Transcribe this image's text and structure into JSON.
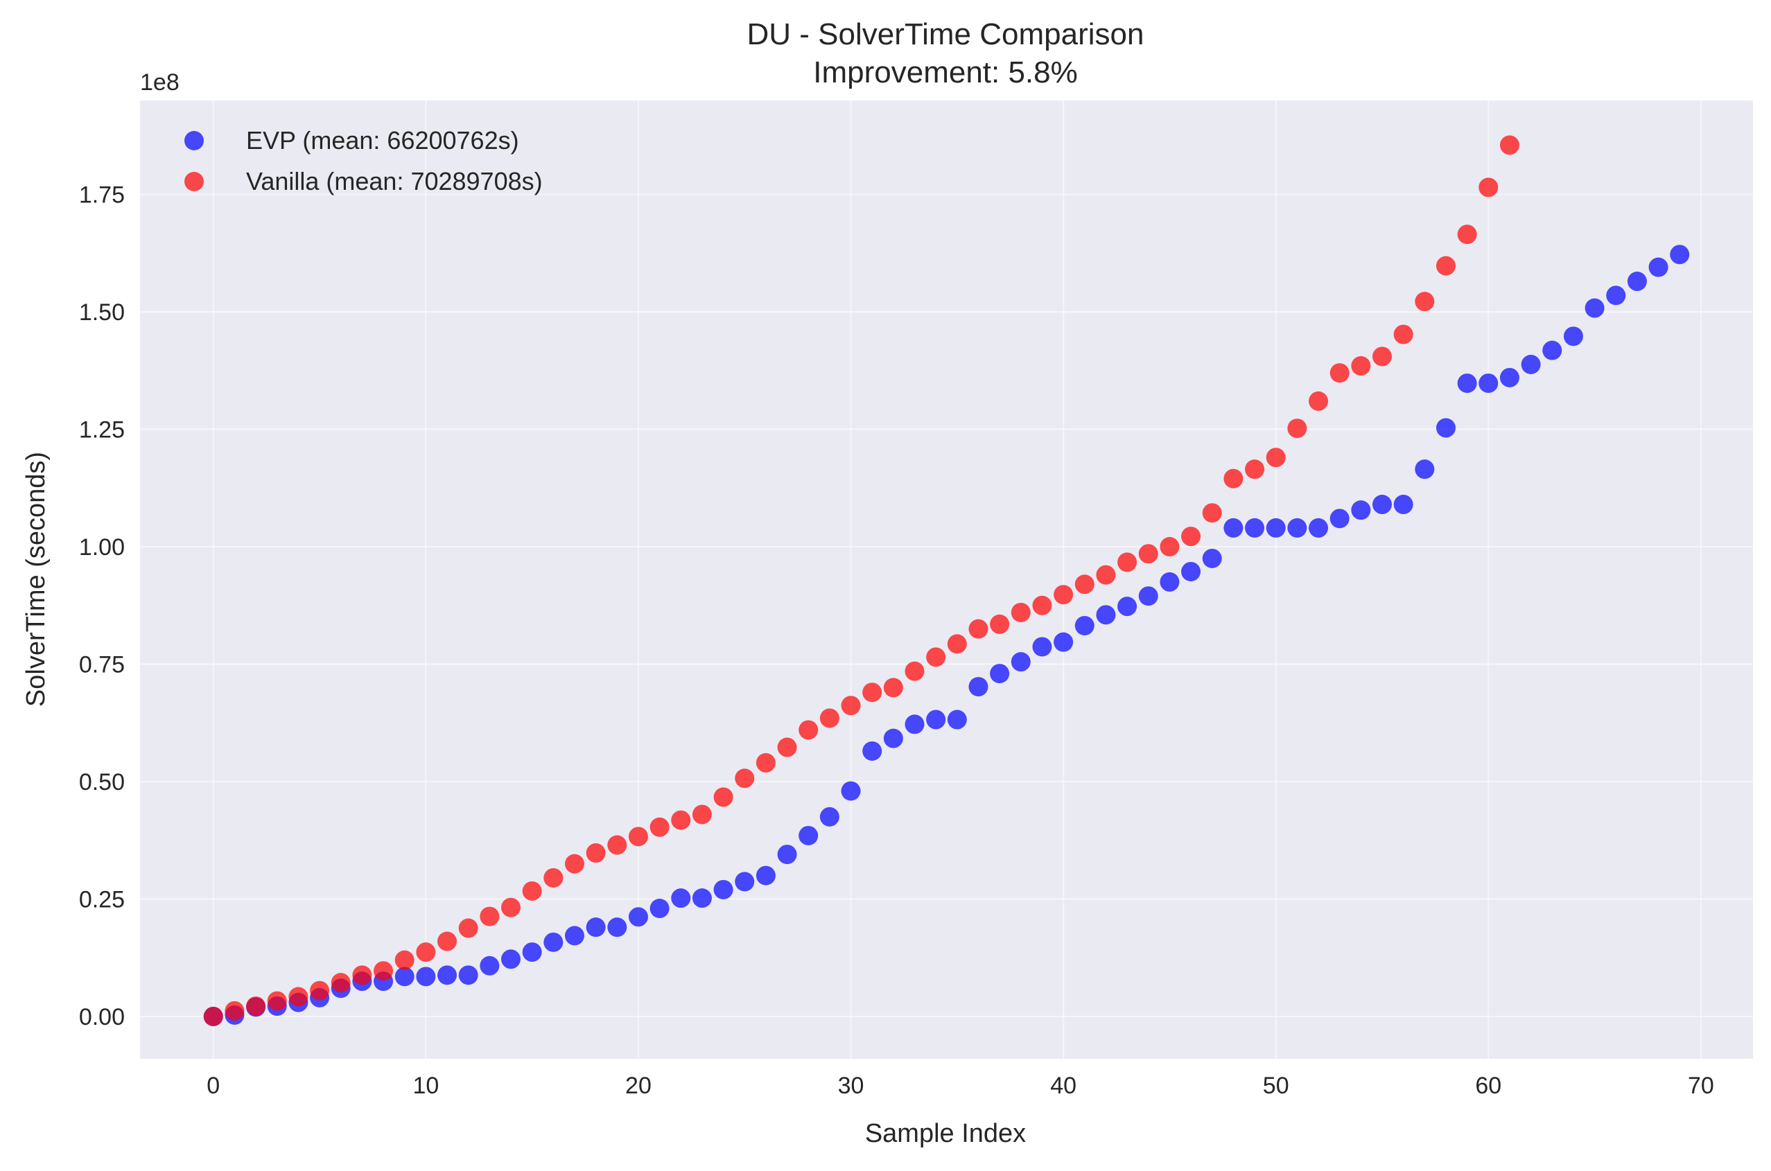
{
  "chart_data": {
    "type": "scatter",
    "title": "DU - SolverTime Comparison",
    "subtitle": "Improvement: 5.8%",
    "xlabel": "Sample Index",
    "ylabel": "SolverTime (seconds)",
    "y_offset_label": "1e8",
    "xlim": [
      -3.45,
      72.45
    ],
    "ylim": [
      -0.09,
      1.95
    ],
    "x_ticks": [
      0,
      10,
      20,
      30,
      40,
      50,
      60,
      70
    ],
    "x_tick_labels": [
      "0",
      "10",
      "20",
      "30",
      "40",
      "50",
      "60",
      "70"
    ],
    "y_ticks": [
      0,
      0.25,
      0.5,
      0.75,
      1.0,
      1.25,
      1.5,
      1.75
    ],
    "y_tick_labels": [
      "0.00",
      "0.25",
      "0.50",
      "0.75",
      "1.00",
      "1.25",
      "1.50",
      "1.75"
    ],
    "grid": true,
    "legend_position": "top-left",
    "background_color": "#eaeaf2",
    "series": [
      {
        "name": "EVP (mean: 66200762s)",
        "color": "#0000ff",
        "x": [
          0,
          1,
          2,
          3,
          4,
          5,
          6,
          7,
          8,
          9,
          10,
          11,
          12,
          13,
          14,
          15,
          16,
          17,
          18,
          19,
          20,
          21,
          22,
          23,
          24,
          25,
          26,
          27,
          28,
          29,
          30,
          31,
          32,
          33,
          34,
          35,
          36,
          37,
          38,
          39,
          40,
          41,
          42,
          43,
          44,
          45,
          46,
          47,
          48,
          49,
          50,
          51,
          52,
          53,
          54,
          55,
          56,
          57,
          58,
          59,
          60,
          61,
          62,
          63,
          64,
          65,
          66,
          67,
          68,
          69
        ],
        "y": [
          0.0,
          0.003,
          0.02,
          0.022,
          0.03,
          0.04,
          0.06,
          0.075,
          0.075,
          0.085,
          0.085,
          0.088,
          0.088,
          0.108,
          0.122,
          0.137,
          0.158,
          0.172,
          0.19,
          0.19,
          0.212,
          0.23,
          0.252,
          0.252,
          0.27,
          0.287,
          0.3,
          0.345,
          0.385,
          0.425,
          0.48,
          0.565,
          0.592,
          0.622,
          0.632,
          0.632,
          0.702,
          0.73,
          0.755,
          0.787,
          0.797,
          0.832,
          0.855,
          0.873,
          0.895,
          0.925,
          0.947,
          0.975,
          1.04,
          1.04,
          1.04,
          1.04,
          1.04,
          1.06,
          1.078,
          1.09,
          1.09,
          1.165,
          1.253,
          1.348,
          1.348,
          1.36,
          1.388,
          1.418,
          1.448,
          1.508,
          1.535,
          1.565,
          1.595,
          1.622
        ]
      },
      {
        "name": "Vanilla (mean: 70289708s)",
        "color": "#ff0000",
        "x": [
          0,
          1,
          2,
          3,
          4,
          5,
          6,
          7,
          8,
          9,
          10,
          11,
          12,
          13,
          14,
          15,
          16,
          17,
          18,
          19,
          20,
          21,
          22,
          23,
          24,
          25,
          26,
          27,
          28,
          29,
          30,
          31,
          32,
          33,
          34,
          35,
          36,
          37,
          38,
          39,
          40,
          41,
          42,
          43,
          44,
          45,
          46,
          47,
          48,
          49,
          50,
          51,
          52,
          53,
          54,
          55,
          56,
          57,
          58,
          59,
          60,
          61
        ],
        "y": [
          0.0,
          0.012,
          0.022,
          0.033,
          0.042,
          0.055,
          0.072,
          0.088,
          0.097,
          0.12,
          0.137,
          0.16,
          0.188,
          0.213,
          0.232,
          0.267,
          0.295,
          0.325,
          0.348,
          0.365,
          0.383,
          0.403,
          0.418,
          0.43,
          0.467,
          0.507,
          0.54,
          0.573,
          0.61,
          0.635,
          0.662,
          0.69,
          0.7,
          0.735,
          0.765,
          0.793,
          0.825,
          0.835,
          0.86,
          0.875,
          0.898,
          0.92,
          0.94,
          0.967,
          0.985,
          1.0,
          1.022,
          1.072,
          1.145,
          1.165,
          1.19,
          1.252,
          1.31,
          1.37,
          1.385,
          1.405,
          1.452,
          1.522,
          1.598,
          1.665,
          1.765,
          1.855
        ]
      }
    ]
  }
}
